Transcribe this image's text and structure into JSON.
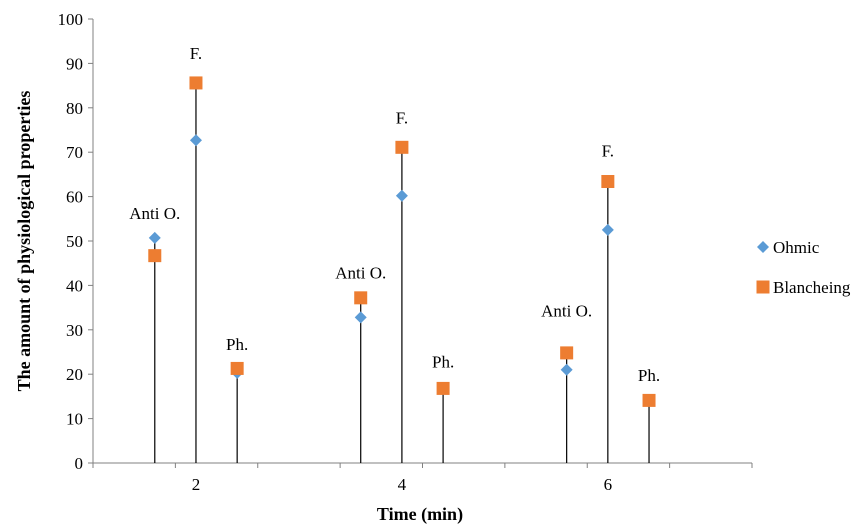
{
  "chart_data": {
    "type": "scatter",
    "xlabel": "Time (min)",
    "ylabel": "The amount of physiological properties",
    "ylim": [
      0,
      100
    ],
    "yticks": [
      "0",
      "10",
      "20",
      "30",
      "40",
      "50",
      "60",
      "70",
      "80",
      "90",
      "100"
    ],
    "xlim": [
      1,
      7.4
    ],
    "xticks": [
      2,
      4,
      6
    ],
    "xtick_labels": [
      "2",
      "4",
      "6"
    ],
    "grid": false,
    "legend_position": "right",
    "series": [
      {
        "name": "Ohmic",
        "marker": "diamond",
        "color": "#5B9BD5",
        "points": [
          {
            "x": 1.6,
            "y": 50.7
          },
          {
            "x": 2.0,
            "y": 72.7
          },
          {
            "x": 2.4,
            "y": 20.3
          },
          {
            "x": 3.6,
            "y": 32.8
          },
          {
            "x": 4.0,
            "y": 60.2
          },
          {
            "x": 4.4,
            "y": 16.8
          },
          {
            "x": 5.6,
            "y": 21.0
          },
          {
            "x": 6.0,
            "y": 52.5
          },
          {
            "x": 6.4,
            "y": 14.0
          }
        ]
      },
      {
        "name": "Blancheing",
        "marker": "square",
        "color": "#ED7D31",
        "points": [
          {
            "x": 1.6,
            "y": 46.7
          },
          {
            "x": 2.0,
            "y": 85.6
          },
          {
            "x": 2.4,
            "y": 21.3
          },
          {
            "x": 3.6,
            "y": 37.2
          },
          {
            "x": 4.0,
            "y": 71.1
          },
          {
            "x": 4.4,
            "y": 16.8
          },
          {
            "x": 5.6,
            "y": 24.8
          },
          {
            "x": 6.0,
            "y": 63.4
          },
          {
            "x": 6.4,
            "y": 14.1
          }
        ]
      }
    ],
    "drop_lines": [
      {
        "x": 1.6,
        "y": 50.7
      },
      {
        "x": 2.0,
        "y": 85.6
      },
      {
        "x": 2.4,
        "y": 21.3
      },
      {
        "x": 3.6,
        "y": 37.2
      },
      {
        "x": 4.0,
        "y": 71.1
      },
      {
        "x": 4.4,
        "y": 16.8
      },
      {
        "x": 5.6,
        "y": 24.8
      },
      {
        "x": 6.0,
        "y": 63.4
      },
      {
        "x": 6.4,
        "y": 14.1
      }
    ],
    "annotations": [
      {
        "text": "Anti O.",
        "x": 1.6,
        "y": 55.0
      },
      {
        "text": "F.",
        "x": 2.0,
        "y": 91.0
      },
      {
        "text": "Ph.",
        "x": 2.4,
        "y": 25.5
      },
      {
        "text": "Anti O.",
        "x": 3.6,
        "y": 41.5
      },
      {
        "text": "F.",
        "x": 4.0,
        "y": 76.5
      },
      {
        "text": "Ph.",
        "x": 4.4,
        "y": 21.5
      },
      {
        "text": "Anti O.",
        "x": 5.6,
        "y": 33.0
      },
      {
        "text": "F.",
        "x": 6.0,
        "y": 69.0
      },
      {
        "text": "Ph.",
        "x": 6.4,
        "y": 18.5
      }
    ]
  }
}
